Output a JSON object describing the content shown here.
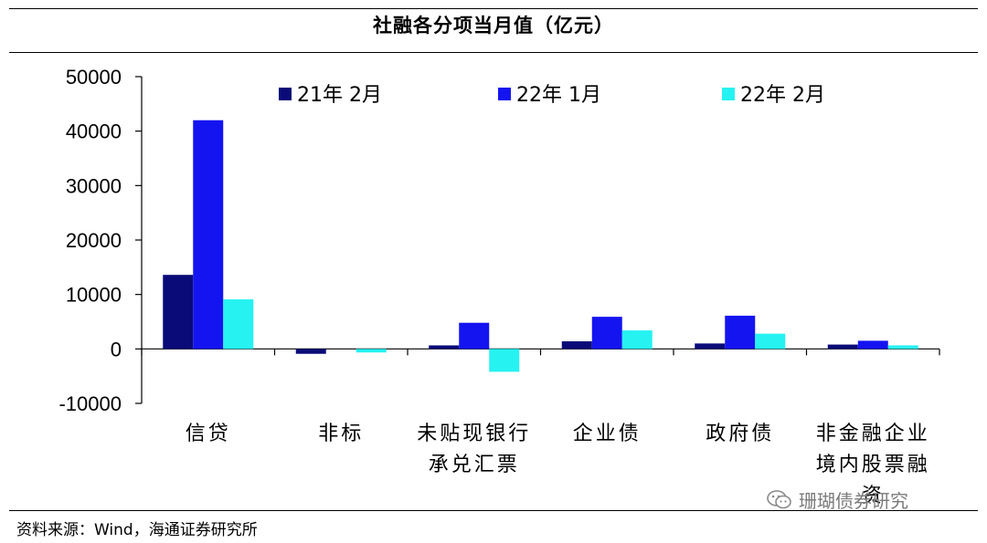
{
  "title": "社融各分项当月值（亿元）",
  "source": "资料来源：Wind，海通证券研究所",
  "watermark": {
    "text": "珊瑚债券研究",
    "icon": "wechat-icon"
  },
  "colors": {
    "s0": "#0a0a78",
    "s1": "#1414f0",
    "s2": "#26f2f2"
  },
  "chart_data": {
    "type": "bar",
    "title": "社融各分项当月值（亿元）",
    "xlabel": "",
    "ylabel": "",
    "ylim": [
      -10000,
      50000
    ],
    "yticks": [
      50000,
      40000,
      30000,
      20000,
      10000,
      0,
      -10000
    ],
    "ytick_labels": [
      "50000",
      "40000",
      "30000",
      "20000",
      "10000",
      "0",
      "-10000"
    ],
    "grid": false,
    "legend_position": "top",
    "categories": [
      [
        "信贷"
      ],
      [
        "非标"
      ],
      [
        "未贴现银行",
        "承兑汇票"
      ],
      [
        "企业债"
      ],
      [
        "政府债"
      ],
      [
        "非金融企业",
        "境内股票融",
        "资"
      ]
    ],
    "series": [
      {
        "name": "21年 2月",
        "values": [
          13600,
          -900,
          650,
          1400,
          1000,
          800
        ]
      },
      {
        "name": "22年 1月",
        "values": [
          42000,
          0,
          4800,
          5900,
          6100,
          1500
        ]
      },
      {
        "name": "22年 2月",
        "values": [
          9100,
          -650,
          -4200,
          3400,
          2800,
          650
        ]
      }
    ]
  }
}
